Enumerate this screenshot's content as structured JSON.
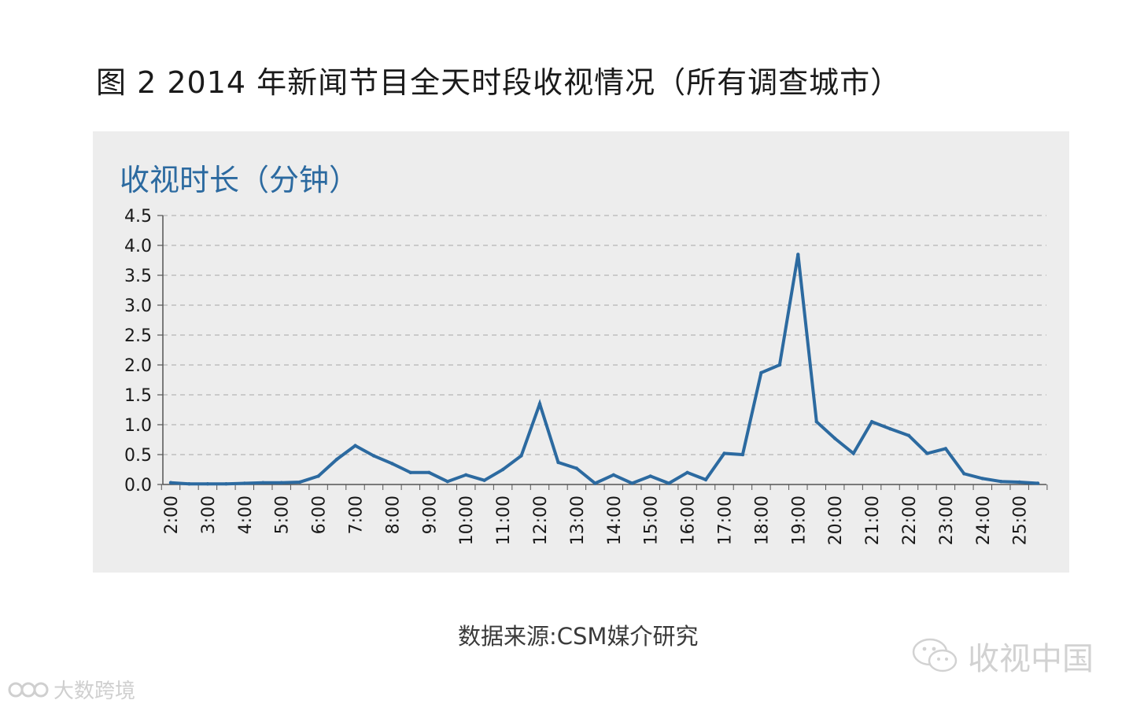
{
  "figure_title": "图 2  2014 年新闻节目全天时段收视情况（所有调查城市）",
  "source_note": "数据来源:CSM媒介研究",
  "watermarks": {
    "right_text": "收视中国",
    "right_icon": "wechat-icon",
    "left_text": "大数跨境",
    "left_icon": "logo-icon"
  },
  "chart_data": {
    "type": "line",
    "title": "",
    "ylabel": "收视时长（分钟）",
    "xlabel": "",
    "ylim": [
      0,
      4.5
    ],
    "yticks": [
      "0.0",
      "0.5",
      "1.0",
      "1.5",
      "2.0",
      "2.5",
      "3.0",
      "3.5",
      "4.0",
      "4.5"
    ],
    "grid": true,
    "x_tick_labels": [
      "2:00",
      "3:00",
      "4:00",
      "5:00",
      "6:00",
      "7:00",
      "8:00",
      "9:00",
      "10:00",
      "11:00",
      "12:00",
      "13:00",
      "14:00",
      "15:00",
      "16:00",
      "17:00",
      "18:00",
      "19:00",
      "20:00",
      "21:00",
      "22:00",
      "23:00",
      "24:00",
      "25:00"
    ],
    "color": "#2c6aa0",
    "series": [
      {
        "values": [
          0.03,
          0.01,
          0.01,
          0.01,
          0.02,
          0.03,
          0.03,
          0.04,
          0.14,
          0.42,
          0.65,
          0.48,
          0.35,
          0.2,
          0.2,
          0.05,
          0.16,
          0.07,
          0.25,
          0.48,
          1.35,
          0.37,
          0.27,
          0.02,
          0.16,
          0.02,
          0.14,
          0.02,
          0.2,
          0.08,
          0.52,
          0.5,
          1.87,
          2.0,
          3.85,
          1.05,
          0.77,
          0.52,
          1.05,
          0.93,
          0.82,
          0.52,
          0.6,
          0.18,
          0.1,
          0.05,
          0.04,
          0.02
        ]
      }
    ]
  }
}
